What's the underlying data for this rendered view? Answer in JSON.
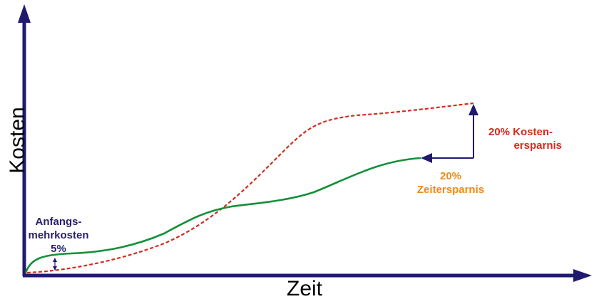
{
  "axes": {
    "y_label": "Kosten",
    "x_label": "Zeit"
  },
  "annotations": {
    "start_extra_cost": {
      "line1": "Anfangs-",
      "line2": "mehrkosten",
      "line3": "5%"
    },
    "time_saving": {
      "line1": "20%",
      "line2": "Zeitersparnis"
    },
    "cost_saving": {
      "line1": "20% Kosten-",
      "line2": "ersparnis"
    }
  },
  "colors": {
    "axis": "#1f1a6e",
    "solid_curve": "#13903a",
    "dashed_curve": "#d42a1f",
    "label_start": "#2a1f6e",
    "label_time": "#f28a17",
    "label_cost": "#d42a1f"
  }
}
